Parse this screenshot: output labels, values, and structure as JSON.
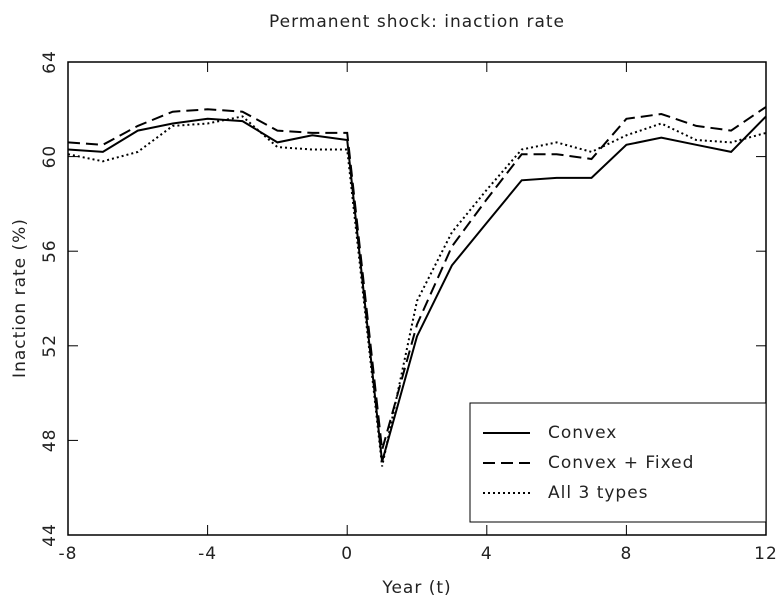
{
  "chart_data": {
    "type": "line",
    "title": "Permanent shock: inaction rate",
    "x_label": "Year (t)",
    "y_label": "Inaction rate (%)",
    "x": [
      -8,
      -7,
      -6,
      -5,
      -4,
      -3,
      -2,
      -1,
      0,
      1,
      2,
      3,
      4,
      5,
      6,
      7,
      8,
      9,
      10,
      11,
      12
    ],
    "xlim": [
      -8,
      12
    ],
    "xticks": [
      -8,
      -4,
      0,
      4,
      8,
      12
    ],
    "ylim": [
      44,
      64
    ],
    "yticks": [
      44,
      48,
      52,
      56,
      60,
      64
    ],
    "legend": "lower right",
    "series": [
      {
        "name": "Convex",
        "color": "#000000",
        "style": "solid",
        "values": [
          60.3,
          60.2,
          61.1,
          61.4,
          61.6,
          61.5,
          60.6,
          60.9,
          60.7,
          47.1,
          52.4,
          55.4,
          57.2,
          59.0,
          59.1,
          59.1,
          60.5,
          60.8,
          60.5,
          60.2,
          61.7
        ]
      },
      {
        "name": "Convex + Fixed",
        "color": "#000000",
        "style": "dashed",
        "values": [
          60.6,
          60.5,
          61.3,
          61.9,
          62.0,
          61.9,
          61.1,
          61.0,
          61.0,
          47.6,
          52.9,
          56.2,
          58.2,
          60.1,
          60.1,
          59.9,
          61.6,
          61.8,
          61.3,
          61.1,
          62.1
        ]
      },
      {
        "name": "All 3 types",
        "color": "#000000",
        "style": "dotted",
        "values": [
          60.1,
          59.8,
          60.2,
          61.3,
          61.4,
          61.7,
          60.4,
          60.3,
          60.3,
          46.9,
          53.9,
          56.8,
          58.6,
          60.3,
          60.6,
          60.2,
          60.9,
          61.4,
          60.7,
          60.6,
          61.0
        ]
      }
    ]
  }
}
